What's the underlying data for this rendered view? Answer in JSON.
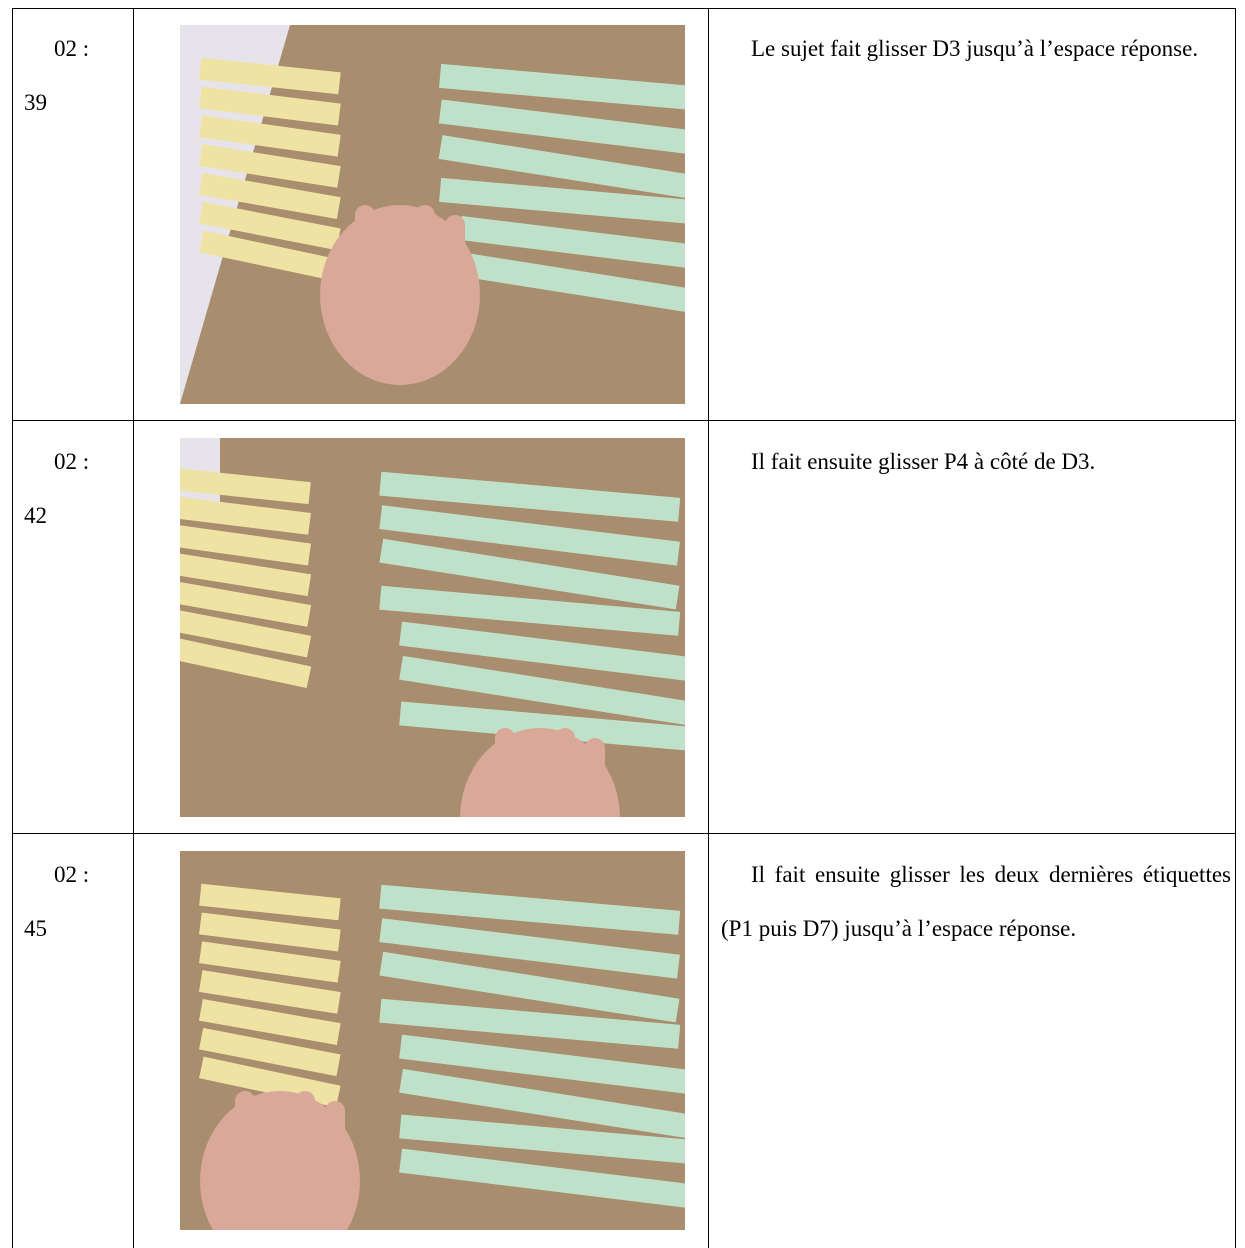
{
  "table": {
    "rows": [
      {
        "time": "02 : 39",
        "description": "Le sujet fait glisser D3 jusqu’à l’espace réponse."
      },
      {
        "time": "02 : 42",
        "description": "Il fait ensuite glisser P4 à côté de D3."
      },
      {
        "time": "02 : 45",
        "description": "Il fait ensuite glisser les deux dernières étiquettes (P1 puis D7) jusqu’à l’espace réponse."
      }
    ]
  }
}
